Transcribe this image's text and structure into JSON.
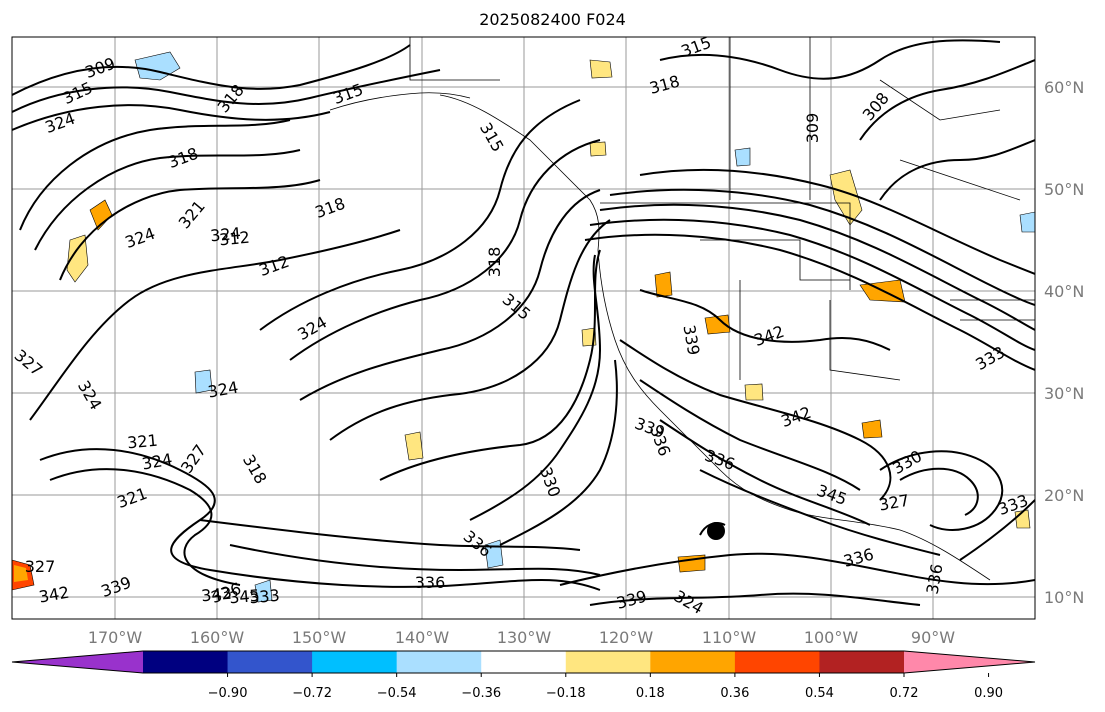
{
  "title": "2025082400 F024",
  "map": {
    "lon_labels": [
      "170°W",
      "160°W",
      "150°W",
      "140°W",
      "130°W",
      "120°W",
      "110°W",
      "100°W",
      "90°W"
    ],
    "lat_labels": [
      "60°N",
      "50°N",
      "40°N",
      "30°N",
      "20°N",
      "10°N"
    ],
    "contour_labels": [
      "309",
      "315",
      "324",
      "318",
      "315",
      "318",
      "321",
      "324",
      "312",
      "324",
      "327",
      "324",
      "324",
      "321",
      "324",
      "327",
      "321",
      "318",
      "327",
      "342",
      "339",
      "342",
      "345",
      "333",
      "315",
      "318",
      "315",
      "308",
      "309",
      "318",
      "315",
      "318",
      "312",
      "324",
      "339",
      "342",
      "336",
      "336",
      "339",
      "324",
      "336",
      "330",
      "336",
      "336",
      "339",
      "342",
      "345",
      "330",
      "327",
      "333",
      "336",
      "333",
      "336"
    ]
  },
  "colorbar": {
    "colors": [
      "#9932cc",
      "#000080",
      "#3355cc",
      "#00bfff",
      "#aadfff",
      "#ffffff",
      "#ffe680",
      "#ffa500",
      "#ff4500",
      "#b22222",
      "#ff88aa"
    ],
    "labels": [
      "−0.90",
      "−0.72",
      "−0.54",
      "−0.36",
      "−0.18",
      "0.18",
      "0.36",
      "0.54",
      "0.72",
      "0.90"
    ]
  }
}
